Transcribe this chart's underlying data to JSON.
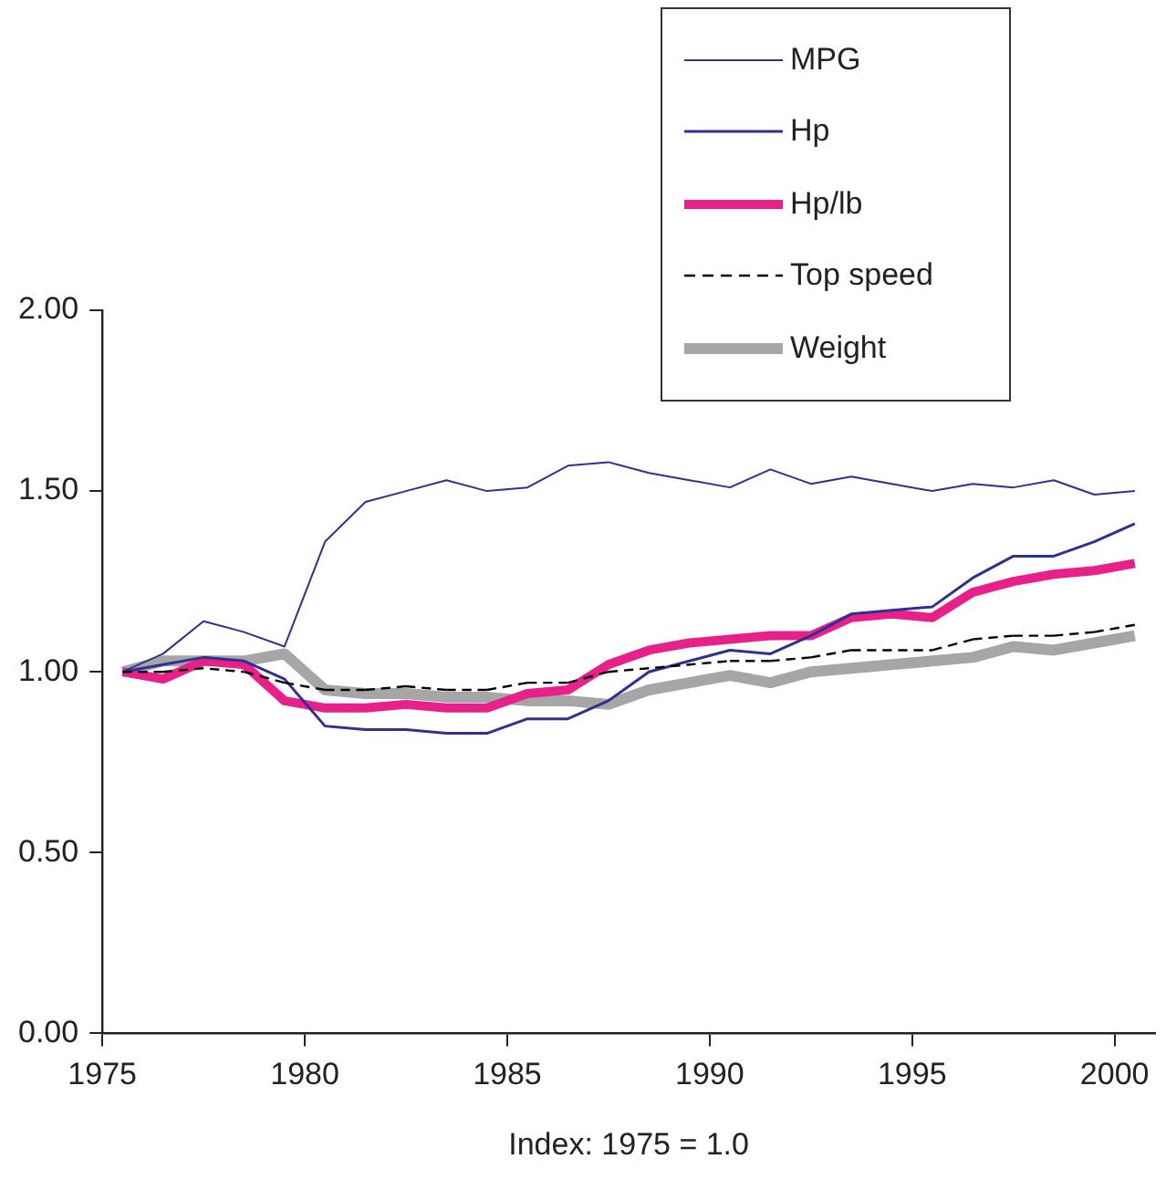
{
  "chart_data": {
    "type": "line",
    "xlabel": "Index: 1975 = 1.0",
    "x": [
      1975.5,
      1976.5,
      1977.5,
      1978.5,
      1979.5,
      1980.5,
      1981.5,
      1982.5,
      1983.5,
      1984.5,
      1985.5,
      1986.5,
      1987.5,
      1988.5,
      1989.5,
      1990.5,
      1991.5,
      1992.5,
      1993.5,
      1994.5,
      1995.5,
      1996.5,
      1997.5,
      1998.5,
      1999.5,
      2000.5
    ],
    "series": [
      {
        "name": "MPG",
        "color": "#2e3192",
        "line_style": "solid",
        "values": [
          1.0,
          1.05,
          1.14,
          1.11,
          1.07,
          1.36,
          1.47,
          1.5,
          1.53,
          1.5,
          1.51,
          1.57,
          1.58,
          1.55,
          1.53,
          1.51,
          1.56,
          1.52,
          1.54,
          1.52,
          1.5,
          1.52,
          1.51,
          1.53,
          1.49,
          1.5
        ]
      },
      {
        "name": "Hp",
        "color": "#2e3192",
        "line_style": "solid",
        "values": [
          1.0,
          1.02,
          1.04,
          1.03,
          0.98,
          0.85,
          0.84,
          0.84,
          0.83,
          0.83,
          0.87,
          0.87,
          0.92,
          1.0,
          1.03,
          1.06,
          1.05,
          1.1,
          1.16,
          1.17,
          1.18,
          1.26,
          1.32,
          1.32,
          1.36,
          1.41
        ]
      },
      {
        "name": "Hp/lb",
        "color": "#e8208a",
        "line_style": "solid",
        "values": [
          1.0,
          0.98,
          1.03,
          1.02,
          0.92,
          0.9,
          0.9,
          0.91,
          0.9,
          0.9,
          0.94,
          0.95,
          1.02,
          1.06,
          1.08,
          1.09,
          1.1,
          1.1,
          1.15,
          1.16,
          1.15,
          1.22,
          1.25,
          1.27,
          1.28,
          1.3
        ]
      },
      {
        "name": "Top speed",
        "color": "#000000",
        "line_style": "dashed",
        "values": [
          1.0,
          1.0,
          1.01,
          1.0,
          0.97,
          0.95,
          0.95,
          0.96,
          0.95,
          0.95,
          0.97,
          0.97,
          1.0,
          1.01,
          1.02,
          1.03,
          1.03,
          1.04,
          1.06,
          1.06,
          1.06,
          1.09,
          1.1,
          1.1,
          1.11,
          1.13
        ]
      },
      {
        "name": "Weight",
        "color": "#a6a6a6",
        "line_style": "solid",
        "values": [
          1.0,
          1.03,
          1.03,
          1.03,
          1.05,
          0.95,
          0.94,
          0.94,
          0.93,
          0.93,
          0.92,
          0.92,
          0.91,
          0.95,
          0.97,
          0.99,
          0.97,
          1.0,
          1.01,
          1.02,
          1.03,
          1.04,
          1.07,
          1.06,
          1.08,
          1.1
        ]
      }
    ],
    "xlim": [
      1975,
      2001
    ],
    "xticks": [
      1975,
      1980,
      1985,
      1990,
      1995,
      2000
    ],
    "ylim": [
      0,
      2
    ],
    "yticks": [
      {
        "value": 0,
        "label": "0.00"
      },
      {
        "value": 0.5,
        "label": "0.50"
      },
      {
        "value": 1,
        "label": "1.00"
      },
      {
        "value": 1.5,
        "label": "1.50"
      },
      {
        "value": 2,
        "label": "2.00"
      }
    ],
    "grid": false,
    "legend": "top right",
    "marker": "none"
  }
}
